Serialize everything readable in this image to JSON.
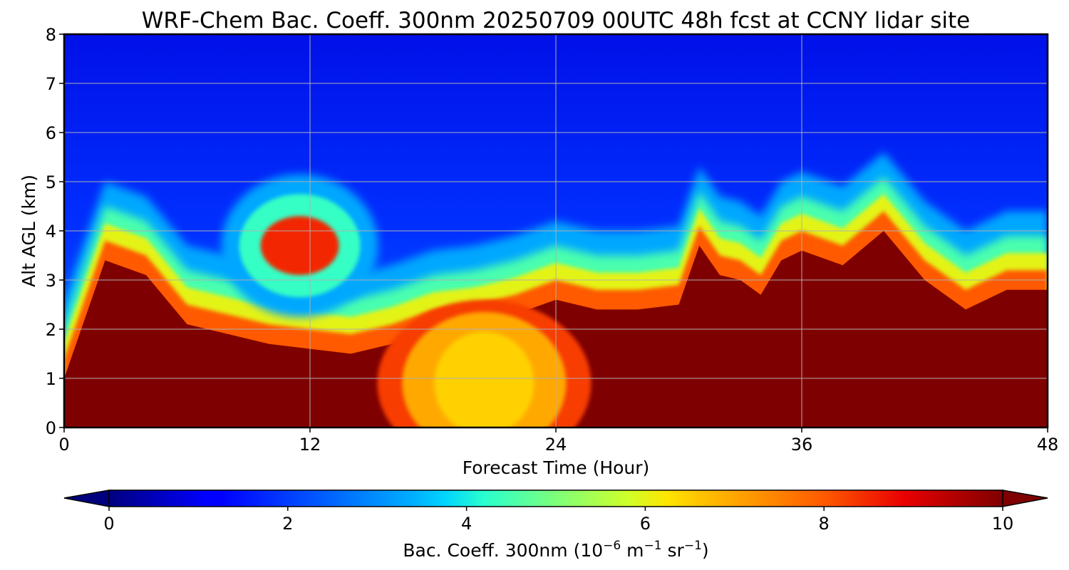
{
  "chart_data": {
    "type": "heatmap",
    "title": "WRF-Chem Bac. Coeff. 300nm  20250709 00UTC 48h fcst at CCNY lidar site",
    "xlabel": "Forecast Time (Hour)",
    "ylabel": "Alt AGL (km)",
    "xlim": [
      0,
      48
    ],
    "ylim": [
      0,
      8
    ],
    "xticks": [
      "0",
      "12",
      "24",
      "36",
      "48"
    ],
    "yticks": [
      "0",
      "1",
      "2",
      "3",
      "4",
      "5",
      "6",
      "7",
      "8"
    ],
    "grid": true,
    "colormap": "jet",
    "colorbar": {
      "label_prefix": "Bac. Coeff. 300nm  (10",
      "label_exp1": "−6",
      "label_mid": " m",
      "label_exp2": "−1",
      "label_mid2": " sr",
      "label_exp3": "−1",
      "label_suffix": ")",
      "range": [
        0,
        10
      ],
      "ticks": [
        "0",
        "2",
        "4",
        "6",
        "8",
        "10"
      ],
      "extend": "both",
      "under_color": "#00007f",
      "over_color": "#7f0000"
    },
    "time_hours": [
      0,
      2,
      4,
      6,
      8,
      10,
      12,
      14,
      16,
      18,
      20,
      22,
      24,
      26,
      28,
      30,
      31,
      32,
      33,
      34,
      35,
      36,
      38,
      40,
      42,
      44,
      46,
      48
    ],
    "boundary_layer_top_km": [
      1.0,
      3.4,
      3.1,
      2.1,
      1.9,
      1.7,
      1.6,
      1.5,
      1.7,
      2.0,
      2.1,
      2.3,
      2.6,
      2.4,
      2.4,
      2.5,
      3.7,
      3.1,
      3.0,
      2.7,
      3.4,
      3.6,
      3.3,
      4.0,
      3.0,
      2.4,
      2.8,
      2.8
    ],
    "aerosol_layer": {
      "center_time_h": 11.5,
      "center_alt_km": 3.7,
      "peak_value": 8.5
    },
    "lofted_plume": {
      "center_time_h": 20.5,
      "center_alt_km": 1.0,
      "peak_value": 6.5
    }
  }
}
